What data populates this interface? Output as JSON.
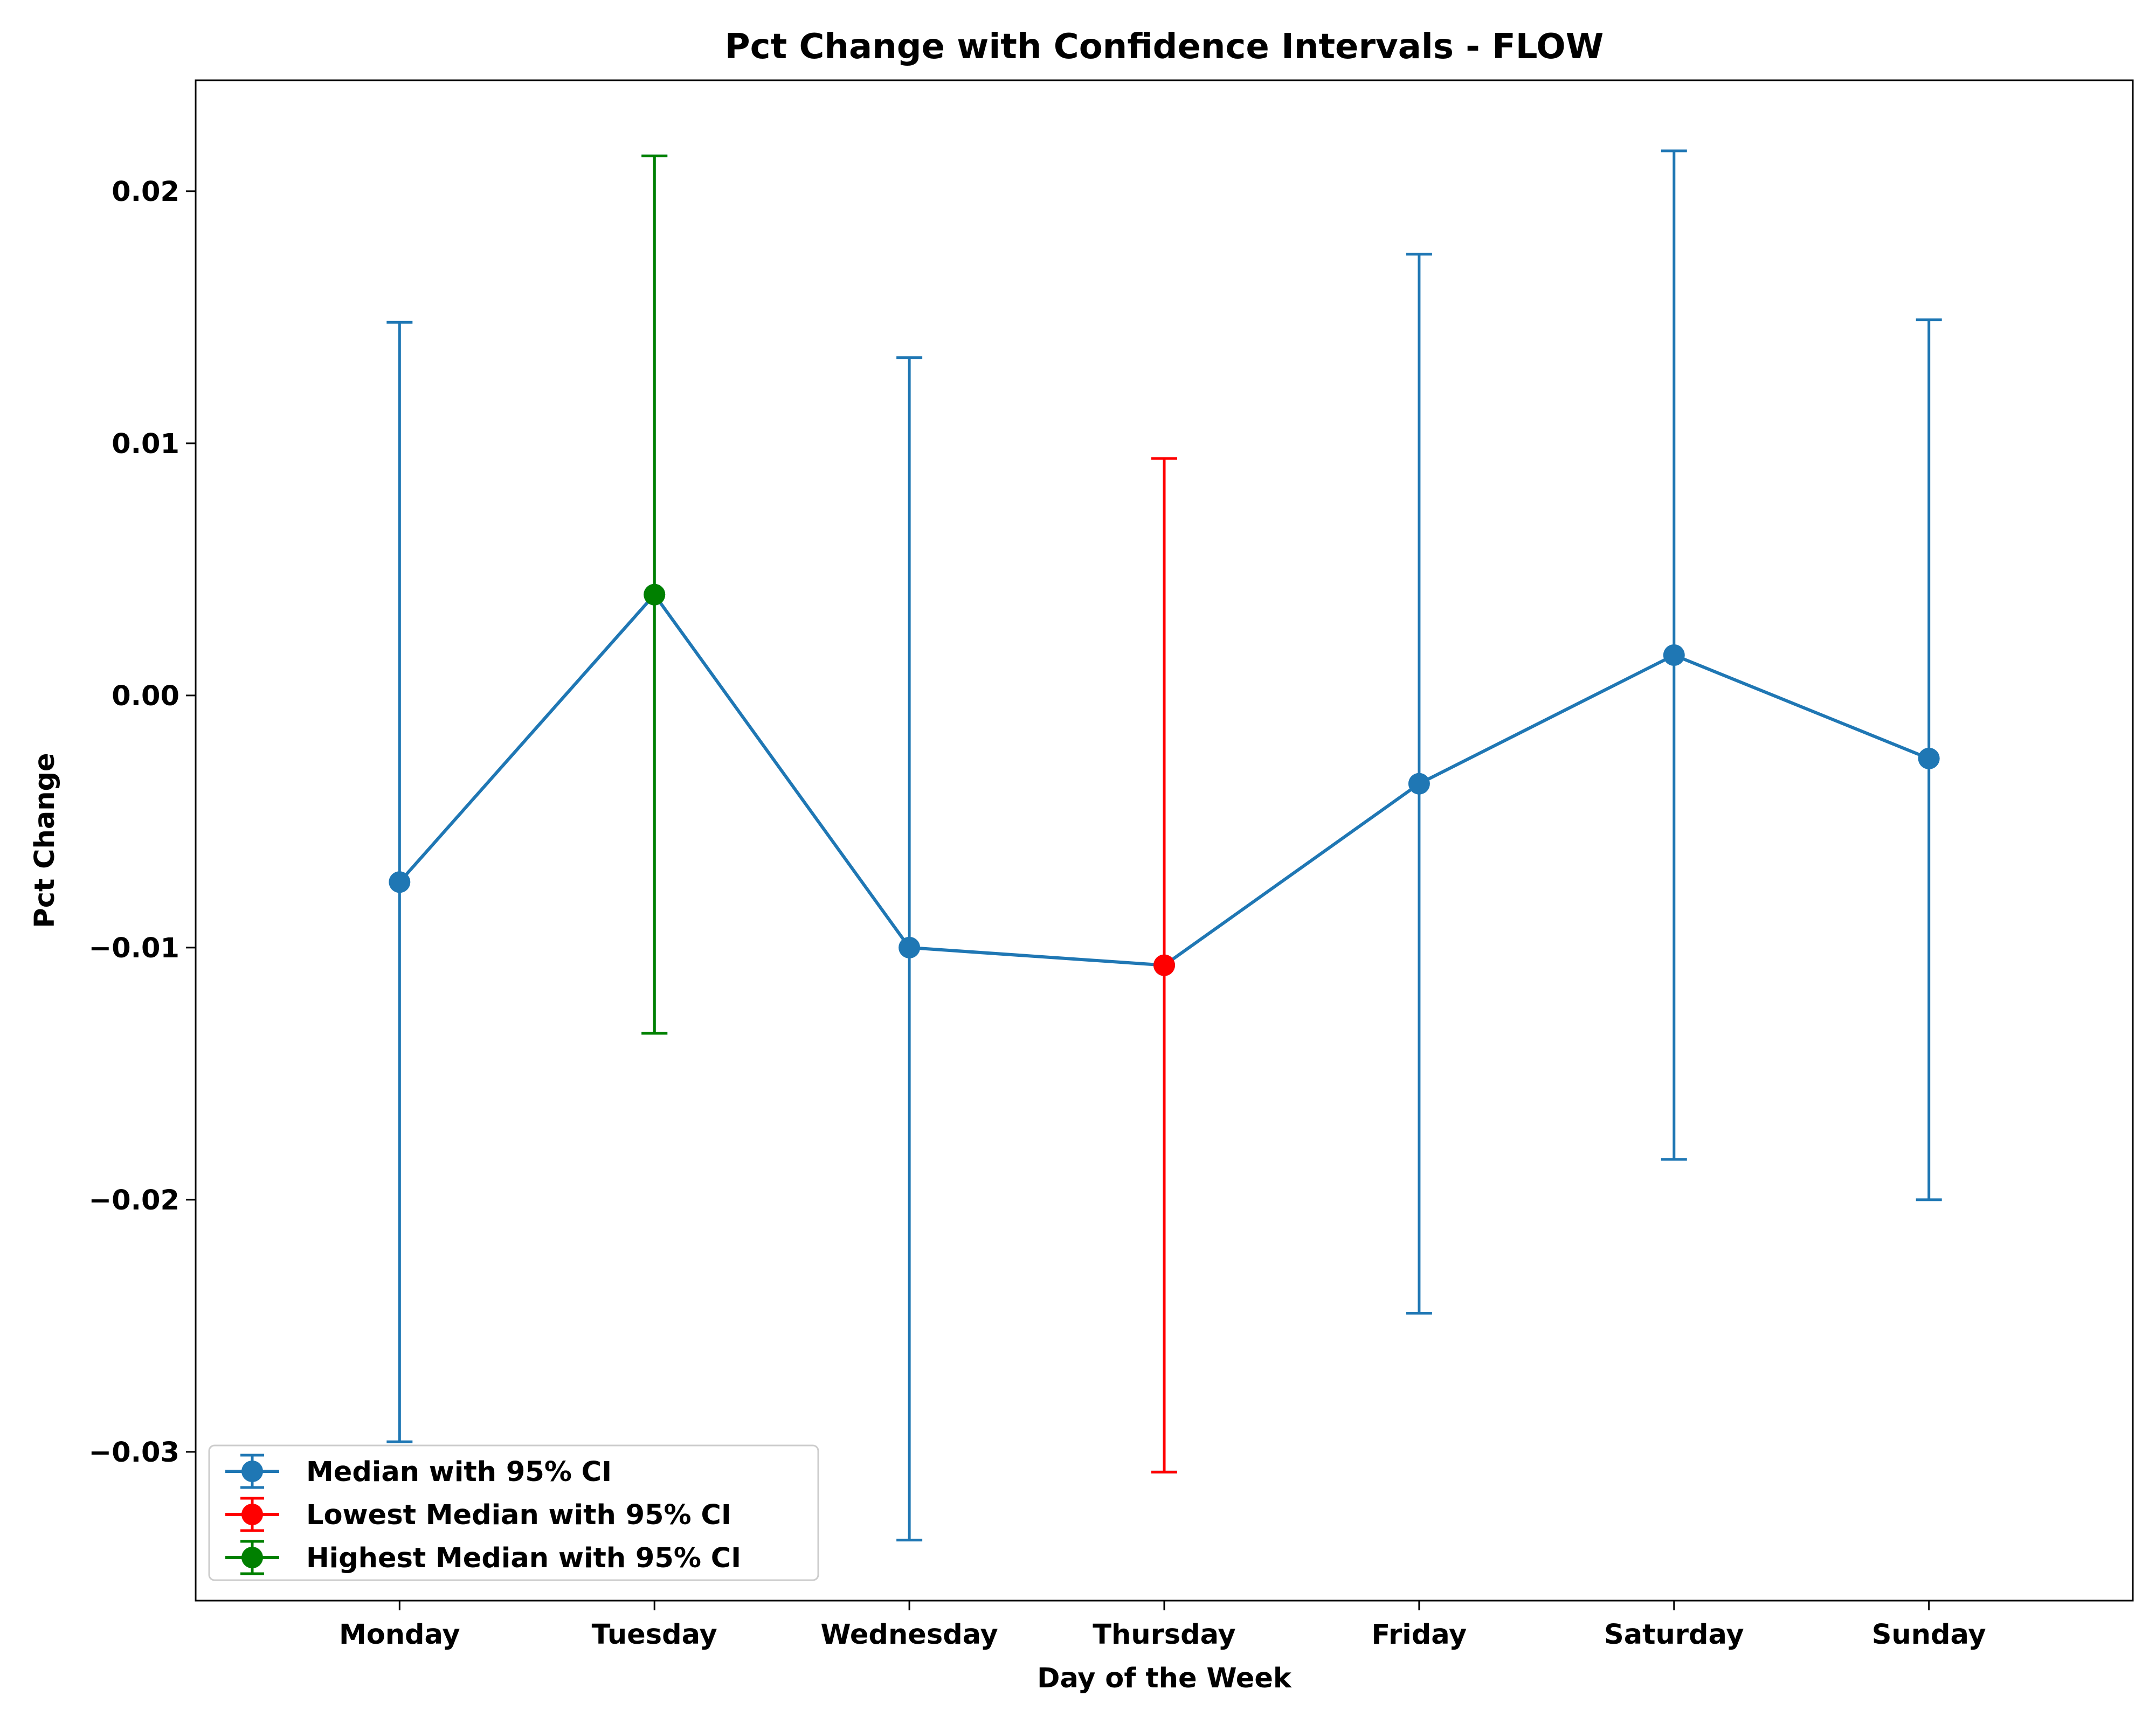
{
  "chart_data": {
    "type": "line",
    "title": "Pct Change with Confidence Intervals - FLOW",
    "xlabel": "Day of the Week",
    "ylabel": "Pct Change",
    "categories": [
      "Monday",
      "Tuesday",
      "Wednesday",
      "Thursday",
      "Friday",
      "Saturday",
      "Sunday"
    ],
    "ylim": [
      -0.0359,
      0.0244
    ],
    "yticks": [
      -0.03,
      -0.02,
      -0.01,
      0.0,
      0.01,
      0.02
    ],
    "ytick_labels": [
      "−0.03",
      "−0.02",
      "−0.01",
      "0.00",
      "0.01",
      "0.02"
    ],
    "grid": false,
    "legend_position": "lower-left",
    "series": [
      {
        "name": "Median with 95% CI",
        "color": "#1f77b4",
        "values": [
          -0.0074,
          0.004,
          -0.01,
          -0.0107,
          -0.0035,
          0.0016,
          -0.0025
        ],
        "ci_lower": [
          -0.0296,
          -0.0134,
          -0.0335,
          -0.0308,
          -0.0245,
          -0.0184,
          -0.02
        ],
        "ci_upper": [
          0.0148,
          0.0214,
          0.0134,
          0.0094,
          0.0175,
          0.0216,
          0.0149
        ]
      },
      {
        "name": "Lowest Median with 95% CI",
        "color": "#ff0000",
        "category": "Thursday",
        "value": -0.0107,
        "ci_lower": -0.0308,
        "ci_upper": 0.0094
      },
      {
        "name": "Highest Median with 95% CI",
        "color": "#008000",
        "category": "Tuesday",
        "value": 0.004,
        "ci_lower": -0.0134,
        "ci_upper": 0.0214
      }
    ]
  }
}
